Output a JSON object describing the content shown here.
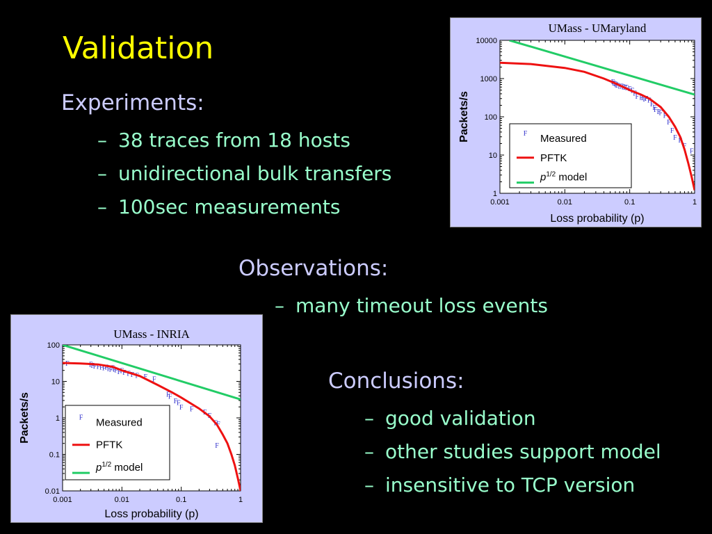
{
  "slide": {
    "title": "Validation",
    "experiments": {
      "heading": "Experiments:",
      "items": [
        "38 traces from 18 hosts",
        "unidirectional bulk transfers",
        "100sec measurements"
      ]
    },
    "observations": {
      "heading": "Observations:",
      "items": [
        "many timeout loss events"
      ]
    },
    "conclusions": {
      "heading": "Conclusions:",
      "items": [
        "good validation",
        "other studies support model",
        "insensitive to TCP version"
      ]
    },
    "bullet_marker": "–",
    "colors": {
      "background": "#000000",
      "title": "#ffff00",
      "heading": "#ccccff",
      "bullet": "#99ffcc",
      "panel": "#ccccff"
    }
  },
  "chart_data": [
    {
      "type": "scatter",
      "title": "UMass - UMaryland",
      "xlabel": "Loss probability (p)",
      "ylabel": "Packets/s",
      "xscale": "log",
      "yscale": "log",
      "xlim": [
        0.001,
        1
      ],
      "ylim": [
        1,
        10000
      ],
      "xticks": [
        "0.001",
        "0.01",
        "0.1",
        "1"
      ],
      "yticks": [
        "1",
        "10",
        "100",
        "1000",
        "10000"
      ],
      "legend_position": "bottom-left",
      "legend": [
        {
          "label": "Measured",
          "marker": "F",
          "color": "#3333cc"
        },
        {
          "label": "PFTK",
          "marker": "line",
          "color": "#ee1111"
        },
        {
          "label_italic": "p",
          "label_sup": "1/2",
          "label_rest": " model",
          "marker": "line",
          "color": "#22cc66"
        }
      ],
      "series": [
        {
          "kind": "points",
          "marker": "F",
          "color": "#3333cc",
          "x": [
            0.055,
            0.057,
            0.06,
            0.062,
            0.065,
            0.07,
            0.075,
            0.08,
            0.085,
            0.09,
            0.1,
            0.11,
            0.12,
            0.13,
            0.15,
            0.16,
            0.17,
            0.18,
            0.2,
            0.22,
            0.24,
            0.25,
            0.28,
            0.3,
            0.35,
            0.4,
            0.45,
            0.5,
            0.6,
            0.7,
            0.9
          ],
          "y": [
            850,
            780,
            750,
            700,
            680,
            650,
            640,
            620,
            600,
            590,
            560,
            500,
            420,
            350,
            330,
            320,
            300,
            310,
            280,
            220,
            180,
            160,
            140,
            130,
            110,
            75,
            45,
            30,
            25,
            18,
            13
          ]
        },
        {
          "kind": "line",
          "color": "#ee1111",
          "x": [
            0.001,
            0.003,
            0.01,
            0.02,
            0.04,
            0.06,
            0.08,
            0.1,
            0.15,
            0.2,
            0.3,
            0.4,
            0.5,
            0.6,
            0.7,
            0.8,
            0.9,
            1.0
          ],
          "y": [
            2600,
            2400,
            1900,
            1500,
            1000,
            750,
            600,
            500,
            380,
            300,
            180,
            100,
            55,
            30,
            14,
            6,
            2.7,
            1.2
          ]
        },
        {
          "kind": "line",
          "color": "#22cc66",
          "x": [
            0.0014,
            1
          ],
          "y": [
            10000,
            380
          ]
        }
      ]
    },
    {
      "type": "scatter",
      "title": "UMass - INRIA",
      "xlabel": "Loss probability (p)",
      "ylabel": "Packets/s",
      "xscale": "log",
      "yscale": "log",
      "xlim": [
        0.001,
        1
      ],
      "ylim": [
        0.01,
        100
      ],
      "xticks": [
        "0.001",
        "0.01",
        "0.1",
        "1"
      ],
      "yticks": [
        "0.01",
        "0.1",
        "1",
        "10",
        "100"
      ],
      "legend_position": "bottom-left",
      "legend": [
        {
          "label": "Measured",
          "marker": "F",
          "color": "#3333cc"
        },
        {
          "label": "PFTK",
          "marker": "line",
          "color": "#ee1111"
        },
        {
          "label_italic": "p",
          "label_sup": "1/2",
          "label_rest": " model",
          "marker": "line",
          "color": "#22cc66"
        }
      ],
      "series": [
        {
          "kind": "points",
          "marker": "F",
          "color": "#3333cc",
          "x": [
            0.0012,
            0.003,
            0.0032,
            0.0035,
            0.004,
            0.0045,
            0.005,
            0.0055,
            0.006,
            0.0065,
            0.007,
            0.0075,
            0.008,
            0.009,
            0.01,
            0.011,
            0.013,
            0.015,
            0.018,
            0.025,
            0.035,
            0.06,
            0.065,
            0.08,
            0.09,
            0.1,
            0.15,
            0.25,
            0.3,
            0.38,
            0.42,
            0.4
          ],
          "y": [
            32,
            30,
            28,
            27,
            26,
            25,
            24,
            25,
            23,
            22,
            24,
            22,
            21,
            19,
            20,
            18,
            17,
            16,
            15,
            14,
            12,
            4.5,
            4.0,
            3.0,
            2.7,
            2.0,
            1.8,
            1.5,
            1.2,
            0.75,
            0.7,
            0.18
          ]
        },
        {
          "kind": "line",
          "color": "#ee1111",
          "x": [
            0.001,
            0.002,
            0.004,
            0.007,
            0.01,
            0.02,
            0.04,
            0.07,
            0.1,
            0.15,
            0.2,
            0.3,
            0.4,
            0.5,
            0.6,
            0.7,
            0.8,
            0.9,
            1.0
          ],
          "y": [
            32,
            31,
            29,
            25,
            20,
            14,
            8,
            5,
            3.6,
            2.4,
            1.8,
            1.1,
            0.65,
            0.35,
            0.2,
            0.1,
            0.05,
            0.022,
            0.01
          ]
        },
        {
          "kind": "line",
          "color": "#22cc66",
          "x": [
            0.001,
            1
          ],
          "y": [
            100,
            3.2
          ]
        }
      ]
    }
  ]
}
